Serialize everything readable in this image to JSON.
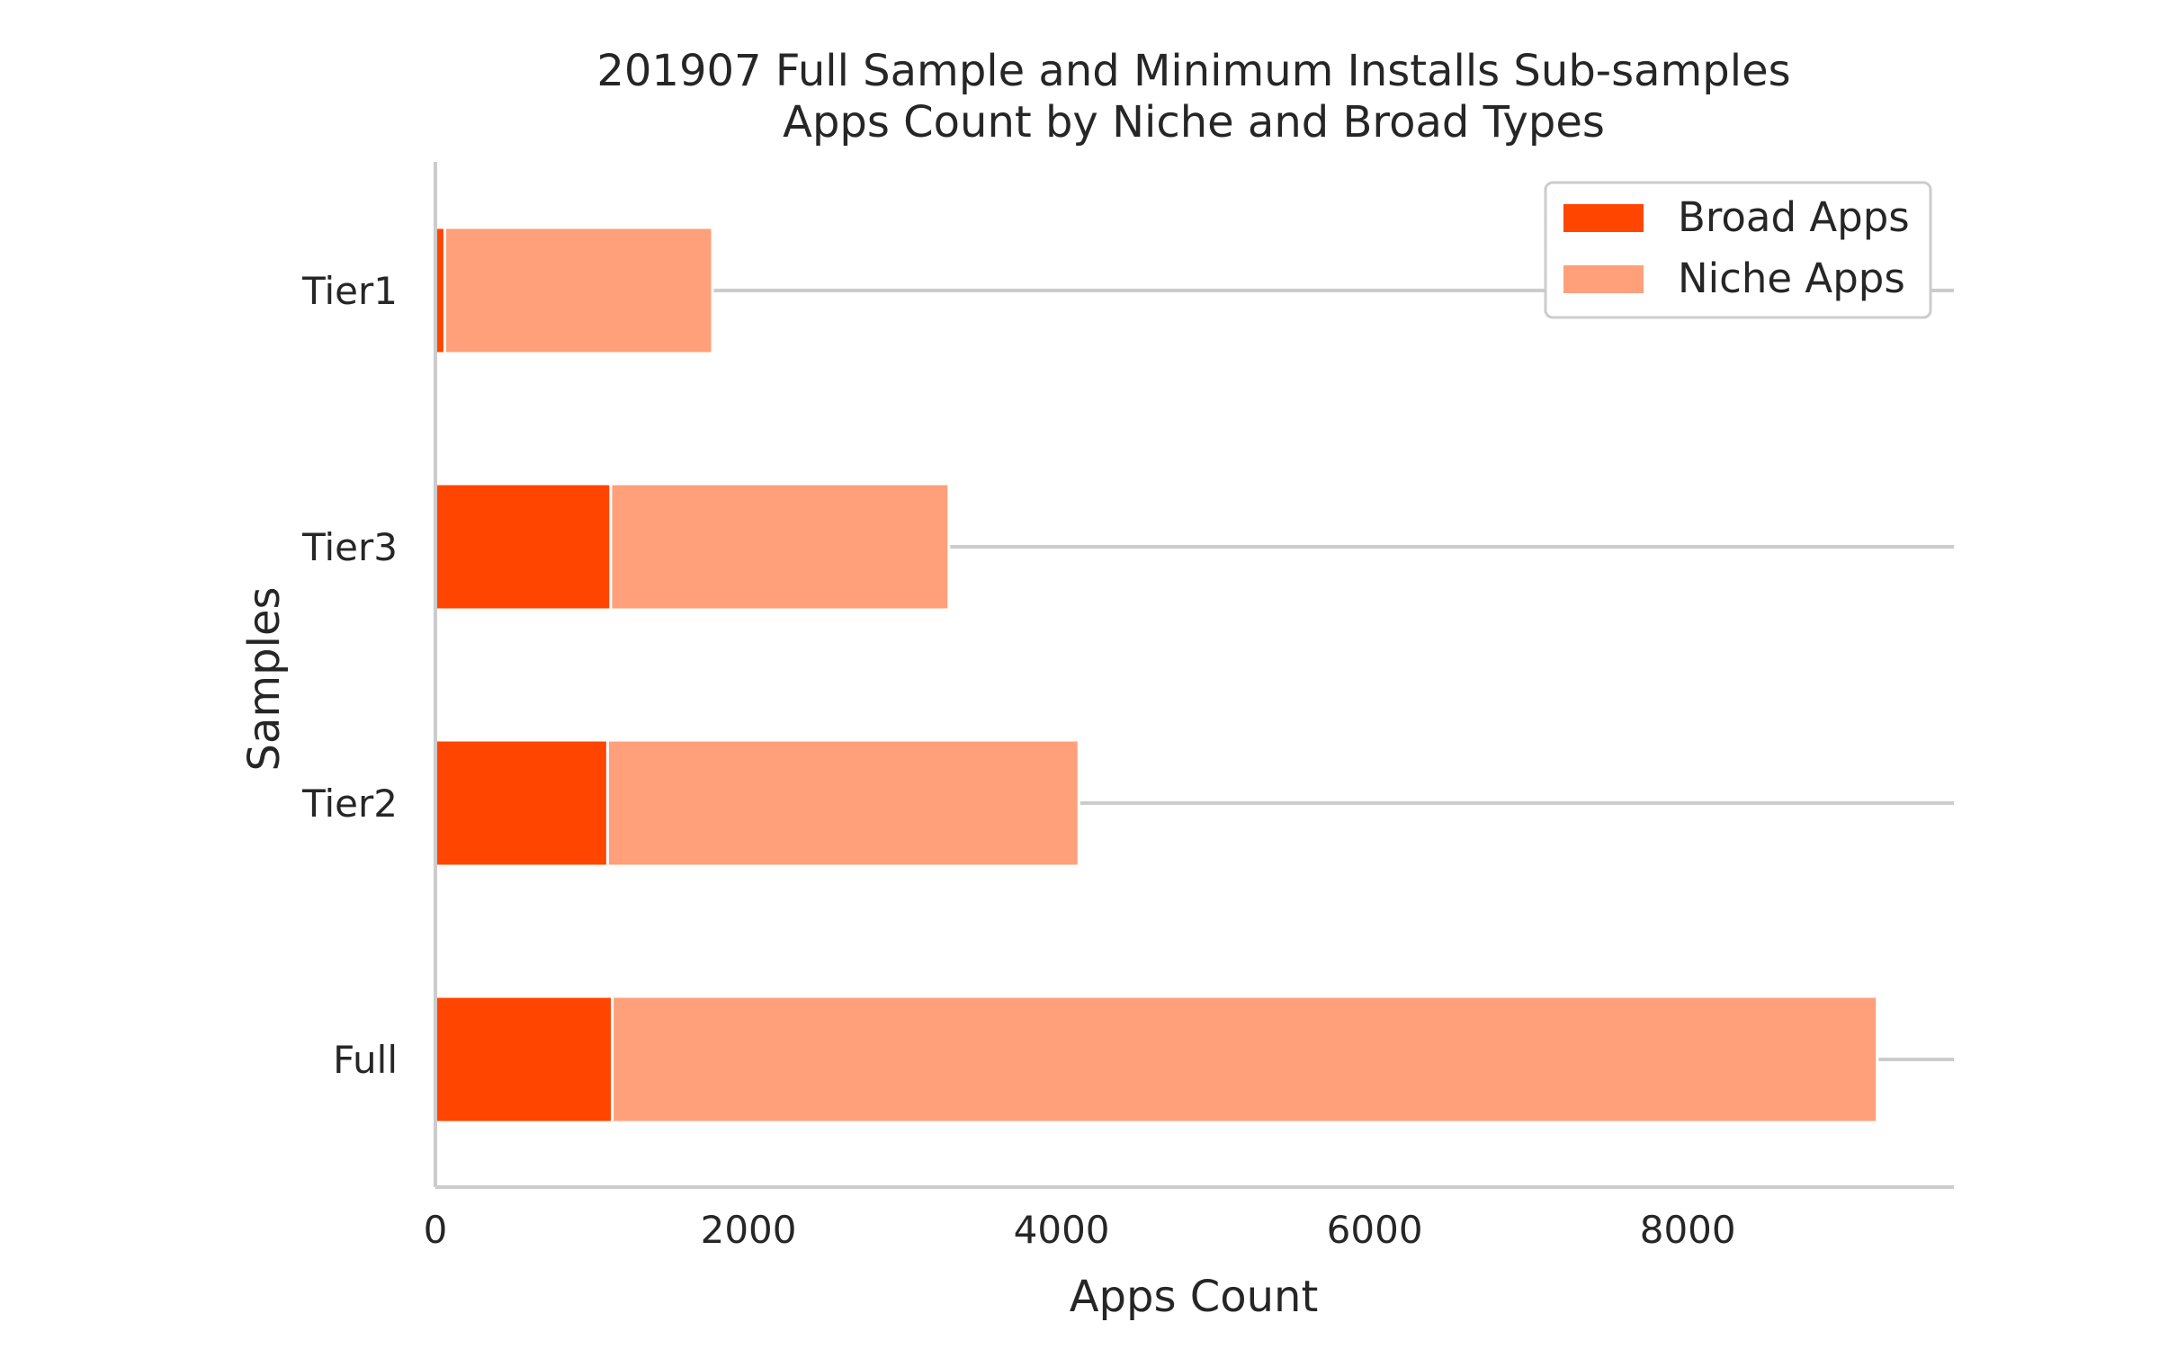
{
  "chart_data": {
    "type": "bar",
    "orientation": "horizontal",
    "stacked": true,
    "title_lines": [
      "201907 Full Sample and Minimum Installs Sub-samples",
      "Apps Count by Niche and Broad Types"
    ],
    "xlabel": "Apps Count",
    "ylabel": "Samples",
    "categories": [
      "Full",
      "Tier2",
      "Tier3",
      "Tier1"
    ],
    "series": [
      {
        "name": "Broad Apps",
        "color": "#ff4500",
        "values": [
          1130,
          1100,
          1120,
          60
        ]
      },
      {
        "name": "Niche Apps",
        "color": "#ffa07a",
        "values": [
          8080,
          3010,
          2160,
          1710
        ]
      }
    ],
    "xlim": [
      0,
      9700
    ],
    "xticks": [
      0,
      2000,
      4000,
      6000,
      8000
    ],
    "xtick_labels": [
      "0",
      "2000",
      "4000",
      "6000",
      "8000"
    ],
    "grid": "y-major",
    "legend_position": "upper right"
  }
}
